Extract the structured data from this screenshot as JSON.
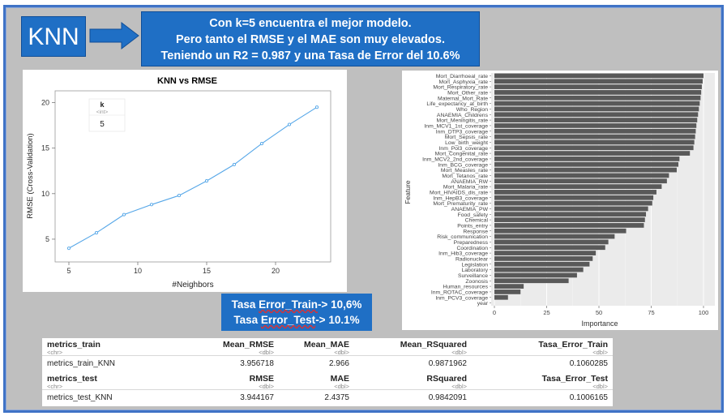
{
  "knn_label": "KNN",
  "headline": {
    "line1": "Con k=5 encuentra el mejor modelo.",
    "line2": "Pero tanto el RMSE y el MAE son muy elevados.",
    "line3": "Teniendo un R2 = 0.987  y una Tasa de Error del 10.6%"
  },
  "error_box": {
    "line1_prefix": "Tasa ",
    "line1_underlined": "Error_Train",
    "line1_suffix": "-> 10,6%",
    "line2_prefix": "Tasa ",
    "line2_underlined": "Error_Test",
    "line2_suffix": "-> 10.1%"
  },
  "chart_data": [
    {
      "type": "line",
      "title": "KNN vs RMSE",
      "xlabel": "#Neighbors",
      "ylabel": "RMSE (Cross-Validation)",
      "x": [
        5,
        7,
        9,
        11,
        13,
        15,
        17,
        19,
        21,
        23
      ],
      "y": [
        4.0,
        5.7,
        7.7,
        8.8,
        9.8,
        11.4,
        13.2,
        15.5,
        17.6,
        19.5
      ],
      "xlim": [
        4,
        24
      ],
      "ylim": [
        2.5,
        21.3
      ],
      "xticks": [
        5,
        10,
        15,
        20
      ],
      "yticks": [
        5,
        10,
        15,
        20
      ],
      "grid": false,
      "legend": {
        "title": "k",
        "subtitle": "<int>",
        "value": "5"
      }
    },
    {
      "type": "bar",
      "orientation": "horizontal",
      "xlabel": "Importance",
      "ylabel": "Feature",
      "xlim": [
        0,
        100
      ],
      "xticks": [
        0,
        25,
        50,
        75,
        100
      ],
      "grid": true,
      "categories": [
        "Mort_Diarrhoeal_rate",
        "Mort_Asphyxia_rate",
        "Mort_Respiratory_rate",
        "Mort_Other_rate",
        "Maternal_Mort_Rate",
        "Life_expectancy_at_birth",
        "Who_Region",
        "ANAEMIA_Childrens",
        "Mort_Meningitis_rate",
        "Inm_MCV1_1st_coverage",
        "Inm_DTP3_coverage",
        "Mort_Sepsis_rate",
        "Low_birth_weight",
        "Inm_Pol3_coverage",
        "Mort_Congenital_rate",
        "Inm_MCV2_2nd_coverage",
        "Inm_BCG_coverage",
        "Mort_Measles_rate",
        "Mort_Tetanos_rate",
        "ANAEMIA_RW",
        "Mort_Malaria_rate",
        "Mort_HIVAIDS_dis_rate",
        "Inm_HepB3_coverage",
        "Mort_Prematurity_rate",
        "ANAEMIA_PW",
        "Food_safety",
        "Chemical",
        "Points_entry",
        "Response",
        "Risk_communication",
        "Preparedness",
        "Coordination",
        "Inm_Hib3_coverage",
        "Radionuclear",
        "Legislation",
        "Laboratory",
        "Surveillance",
        "Zoonosis",
        "Human_resources",
        "Inm_ROTAC_coverage",
        "Inm_PCV3_coverage",
        "year"
      ],
      "values": [
        100,
        99.6,
        99.2,
        98.9,
        98.6,
        98.2,
        97.8,
        97.4,
        97.0,
        96.6,
        96.3,
        96.0,
        95.6,
        95.2,
        93.5,
        88.5,
        88.0,
        87.2,
        83.5,
        82.5,
        80.0,
        77.5,
        76.0,
        75.5,
        73.5,
        72.5,
        72.0,
        71.5,
        63.0,
        57.5,
        54.5,
        53.0,
        48.5,
        47.0,
        45.5,
        42.5,
        39.5,
        35.5,
        14.0,
        12.5,
        6.5,
        0
      ]
    }
  ],
  "metrics_train": {
    "headers": [
      "metrics_train",
      "Mean_RMSE",
      "Mean_MAE",
      "Mean_RSquared",
      "Tasa_Error_Train"
    ],
    "types": [
      "<chr>",
      "<dbl>",
      "<dbl>",
      "<dbl>",
      "<dbl>"
    ],
    "row": [
      "metrics_train_KNN",
      "3.956718",
      "2.966",
      "0.9871962",
      "0.1060285"
    ]
  },
  "metrics_test": {
    "headers": [
      "metrics_test",
      "RMSE",
      "MAE",
      "RSquared",
      "Tasa_Error_Test"
    ],
    "types": [
      "<chr>",
      "<dbl>",
      "<dbl>",
      "<dbl>",
      "<dbl>"
    ],
    "row": [
      "metrics_test_KNN",
      "3.944167",
      "2.4375",
      "0.9842091",
      "0.1006165"
    ]
  },
  "colors": {
    "slide_blue": "#1f6fc5",
    "frame_border": "#3f73c6",
    "frame_bg": "#bfbfbf",
    "line": "#56a7e8",
    "bars": "#595959"
  }
}
